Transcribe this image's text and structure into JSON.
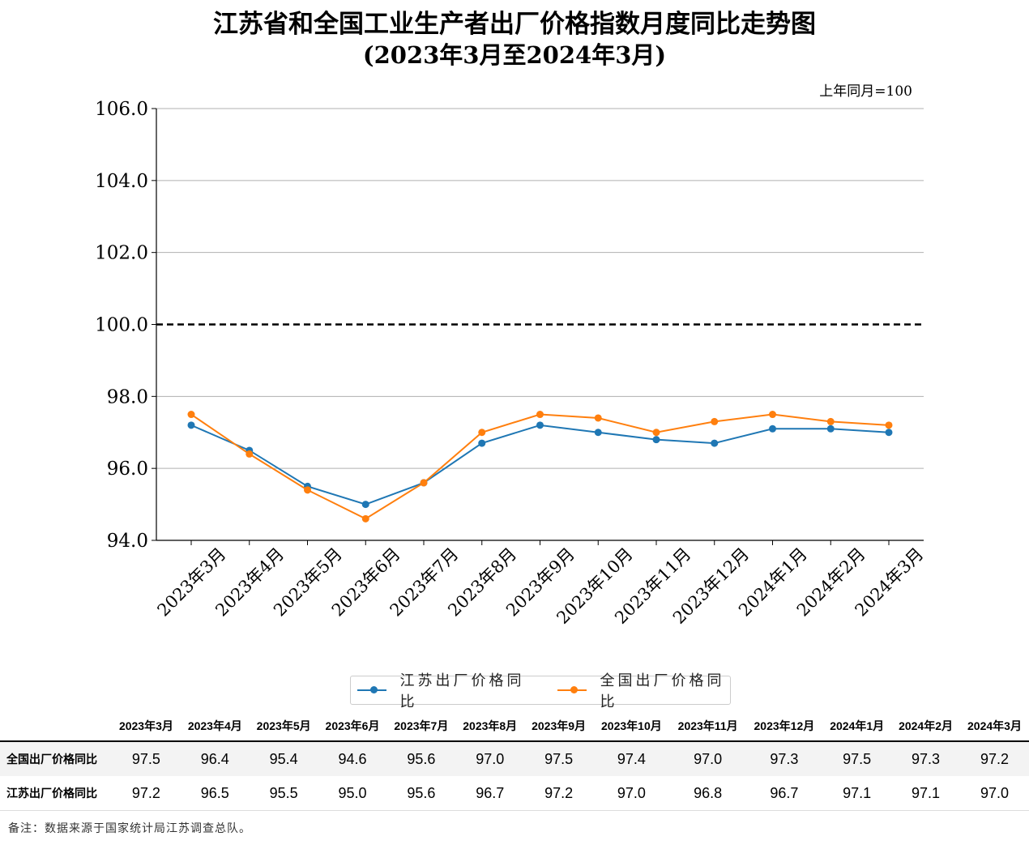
{
  "title": "江苏省和全国工业生产者出厂价格指数月度同比走势图",
  "subtitle": "(2023年3月至2024年3月)",
  "unit_note": "上年同月=100",
  "colors": {
    "jiangsu": "#1f77b4",
    "national": "#ff7f0e",
    "reference": "#000000",
    "grid": "#b0b0b0"
  },
  "chart_data": {
    "type": "line",
    "categories": [
      "2023年3月",
      "2023年4月",
      "2023年5月",
      "2023年6月",
      "2023年7月",
      "2023年8月",
      "2023年9月",
      "2023年10月",
      "2023年11月",
      "2023年12月",
      "2024年1月",
      "2024年2月",
      "2024年3月"
    ],
    "series": [
      {
        "name": "江苏出厂价格同比",
        "color": "#1f77b4",
        "values": [
          97.2,
          96.5,
          95.5,
          95.0,
          95.6,
          96.7,
          97.2,
          97.0,
          96.8,
          96.7,
          97.1,
          97.1,
          97.0
        ]
      },
      {
        "name": "全国出厂价格同比",
        "color": "#ff7f0e",
        "values": [
          97.5,
          96.4,
          95.4,
          94.6,
          95.6,
          97.0,
          97.5,
          97.4,
          97.0,
          97.3,
          97.5,
          97.3,
          97.2
        ]
      }
    ],
    "ylim": [
      94.0,
      106.0
    ],
    "yticks": [
      "94.0",
      "96.0",
      "98.0",
      "100.0",
      "102.0",
      "104.0",
      "106.0"
    ],
    "reference_line": 100,
    "grid": "horizontal",
    "legend_position": "bottom"
  },
  "table": {
    "headers": [
      "2023年3月",
      "2023年4月",
      "2023年5月",
      "2023年6月",
      "2023年7月",
      "2023年8月",
      "2023年9月",
      "2023年10月",
      "2023年11月",
      "2023年12月",
      "2024年1月",
      "2024年2月",
      "2024年3月"
    ],
    "rows": [
      {
        "label": "全国出厂价格同比",
        "cells": [
          "97.5",
          "96.4",
          "95.4",
          "94.6",
          "95.6",
          "97.0",
          "97.5",
          "97.4",
          "97.0",
          "97.3",
          "97.5",
          "97.3",
          "97.2"
        ]
      },
      {
        "label": "江苏出厂价格同比",
        "cells": [
          "97.2",
          "96.5",
          "95.5",
          "95.0",
          "95.6",
          "96.7",
          "97.2",
          "97.0",
          "96.8",
          "96.7",
          "97.1",
          "97.1",
          "97.0"
        ]
      }
    ]
  },
  "note": "备注：数据来源于国家统计局江苏调查总队。"
}
